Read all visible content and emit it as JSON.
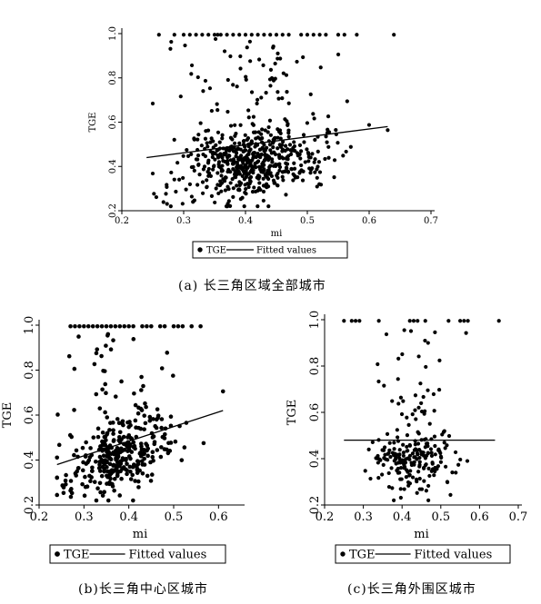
{
  "captions": {
    "a": "(a) 长三角区域全部城市",
    "b": "(b)长三角中心区城市",
    "c": "(c)长三角外围区城市"
  },
  "legend": {
    "scatter_label": "TGE",
    "line_label": "Fitted values"
  },
  "colors": {
    "point": "#000000",
    "line": "#000000"
  },
  "chart_data": [
    {
      "id": "a",
      "type": "scatter",
      "xlabel": "mi",
      "ylabel": "TGE",
      "xlim": [
        0.2,
        0.7
      ],
      "ylim": [
        0.2,
        1.0
      ],
      "xticks": [
        "0.2",
        "0.3",
        "0.4",
        "0.5",
        "0.6",
        "0.7"
      ],
      "yticks": [
        "0.2",
        "0.4",
        "0.6",
        "0.8",
        "1.0"
      ],
      "legend": [
        "TGE",
        "Fitted values"
      ],
      "grid": false,
      "fit": {
        "x": [
          0.24,
          0.63
        ],
        "y": [
          0.44,
          0.58
        ]
      },
      "cap_x": [
        0.26,
        0.285,
        0.3,
        0.31,
        0.32,
        0.33,
        0.34,
        0.35,
        0.355,
        0.36,
        0.37,
        0.38,
        0.39,
        0.4,
        0.41,
        0.42,
        0.43,
        0.44,
        0.45,
        0.46,
        0.47,
        0.49,
        0.5,
        0.51,
        0.52,
        0.53,
        0.55,
        0.56,
        0.58,
        0.64
      ],
      "cloud": {
        "n": 620,
        "seed": 11,
        "xmin": 0.25,
        "xmax": 0.63,
        "xmean": 0.41,
        "xsd": 0.06,
        "ymean": 0.42,
        "ysd": 0.085,
        "slope": 0.36,
        "ymin": 0.22,
        "ymax": 0.98,
        "outliers": 70
      }
    },
    {
      "id": "b",
      "type": "scatter",
      "xlabel": "mi",
      "ylabel": "TGE",
      "xlim": [
        0.2,
        0.65
      ],
      "ylim": [
        0.2,
        1.0
      ],
      "xticks": [
        "0.2",
        "0.3",
        "0.4",
        "0.5",
        "0.6"
      ],
      "yticks": [
        "0.2",
        "0.4",
        "0.6",
        "0.8",
        "1.0"
      ],
      "legend": [
        "TGE",
        "Fitted values"
      ],
      "grid": false,
      "fit": {
        "x": [
          0.24,
          0.61
        ],
        "y": [
          0.38,
          0.62
        ]
      },
      "cap_x": [
        0.27,
        0.28,
        0.29,
        0.3,
        0.31,
        0.32,
        0.33,
        0.34,
        0.35,
        0.36,
        0.37,
        0.38,
        0.39,
        0.4,
        0.41,
        0.43,
        0.44,
        0.45,
        0.47,
        0.48,
        0.5,
        0.51,
        0.52,
        0.54,
        0.56
      ],
      "cloud": {
        "n": 360,
        "seed": 23,
        "xmin": 0.24,
        "xmax": 0.61,
        "xmean": 0.38,
        "xsd": 0.06,
        "ymean": 0.43,
        "ysd": 0.085,
        "slope": 0.6,
        "ymin": 0.22,
        "ymax": 0.96,
        "outliers": 40
      }
    },
    {
      "id": "c",
      "type": "scatter",
      "xlabel": "mi",
      "ylabel": "TGE",
      "xlim": [
        0.2,
        0.7
      ],
      "ylim": [
        0.2,
        1.0
      ],
      "xticks": [
        "0.2",
        "0.3",
        "0.4",
        "0.5",
        "0.6",
        "0.7"
      ],
      "yticks": [
        "0.2",
        "0.4",
        "0.6",
        "0.8",
        "1.0"
      ],
      "legend": [
        "TGE",
        "Fitted values"
      ],
      "grid": false,
      "fit": {
        "x": [
          0.25,
          0.64
        ],
        "y": [
          0.48,
          0.48
        ]
      },
      "cap_x": [
        0.25,
        0.27,
        0.28,
        0.29,
        0.34,
        0.42,
        0.43,
        0.44,
        0.46,
        0.52,
        0.55,
        0.56,
        0.57,
        0.65
      ],
      "cloud": {
        "n": 230,
        "seed": 37,
        "xmin": 0.25,
        "xmax": 0.65,
        "xmean": 0.43,
        "xsd": 0.05,
        "ymean": 0.4,
        "ysd": 0.07,
        "slope": 0.0,
        "ymin": 0.22,
        "ymax": 0.96,
        "outliers": 35
      }
    }
  ]
}
